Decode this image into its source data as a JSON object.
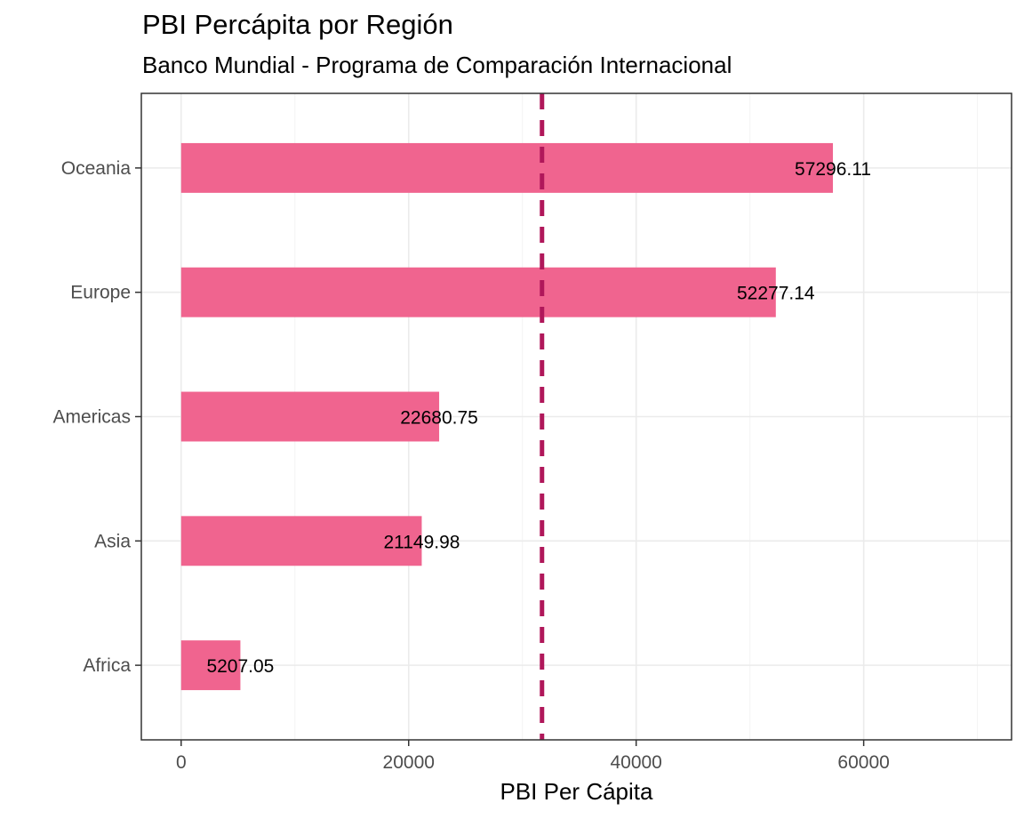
{
  "chart_data": {
    "type": "bar",
    "orientation": "horizontal",
    "title": "PBI Percápita por Región",
    "subtitle": "Banco Mundial - Programa de Comparación Internacional",
    "xlabel": "PBI Per Cápita",
    "ylabel": "",
    "categories": [
      "Africa",
      "Asia",
      "Americas",
      "Europe",
      "Oceania"
    ],
    "values": [
      5207.05,
      21149.98,
      22680.75,
      52277.14,
      57296.11
    ],
    "data_labels": [
      "5207.05",
      "21149.98",
      "22680.75",
      "52277.14",
      "57296.11"
    ],
    "xlim": [
      -3500,
      73000
    ],
    "x_ticks": [
      0,
      20000,
      40000,
      60000
    ],
    "x_tick_labels": [
      "0",
      "20000",
      "40000",
      "60000"
    ],
    "reference_line": {
      "value": 31722.2,
      "style": "dashed"
    },
    "grid": true,
    "legend": "none",
    "colors": {
      "bar": "#f0648f",
      "reference_line": "#b0175a",
      "panel_border": "#333333",
      "grid": "#ebebeb"
    }
  }
}
